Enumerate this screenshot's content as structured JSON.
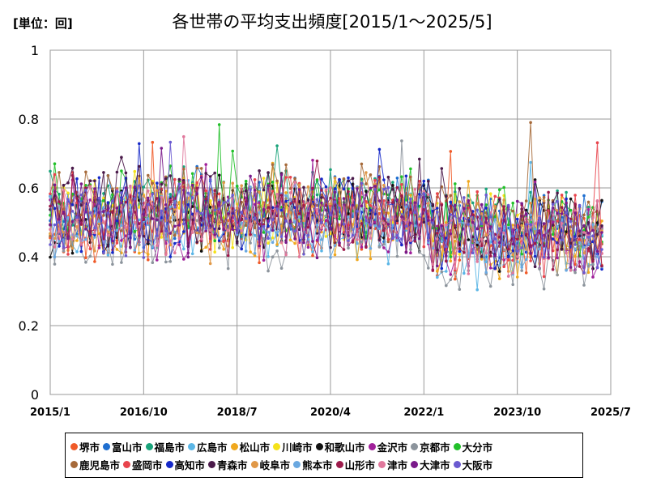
{
  "chart_data": {
    "type": "line",
    "title": "各世帯の平均支出頻度[2015/1～2025/5]",
    "unit_label": "[単位：回]",
    "xlabel": "",
    "ylabel": "",
    "ylim": [
      0,
      1
    ],
    "yticks": [
      "0",
      "0.2",
      "0.4",
      "0.6",
      "0.8",
      "1"
    ],
    "yticks_values": [
      0,
      0.2,
      0.4,
      0.6,
      0.8,
      1
    ],
    "xticks": [
      "2015/1",
      "2016/10",
      "2018/7",
      "2020/4",
      "2022/1",
      "2023/10",
      "2025/7"
    ],
    "xticks_index": [
      0,
      21,
      42,
      63,
      84,
      105,
      126
    ],
    "n_points": 125,
    "grid": true,
    "legend_position": "bottom",
    "series": [
      {
        "name": "堺市",
        "color": "#f05a28",
        "base": 0.49,
        "amp": 0.08,
        "seed": 1
      },
      {
        "name": "富山市",
        "color": "#1f6fd0",
        "base": 0.54,
        "amp": 0.1,
        "seed": 2
      },
      {
        "name": "福島市",
        "color": "#19a37a",
        "base": 0.55,
        "amp": 0.09,
        "seed": 3
      },
      {
        "name": "広島市",
        "color": "#5bb6e6",
        "base": 0.48,
        "amp": 0.08,
        "seed": 4
      },
      {
        "name": "松山市",
        "color": "#f0a81e",
        "base": 0.5,
        "amp": 0.09,
        "seed": 5
      },
      {
        "name": "川崎市",
        "color": "#f5e21a",
        "base": 0.53,
        "amp": 0.1,
        "seed": 6
      },
      {
        "name": "和歌山市",
        "color": "#111111",
        "base": 0.52,
        "amp": 0.1,
        "seed": 7
      },
      {
        "name": "金沢市",
        "color": "#a0209a",
        "base": 0.49,
        "amp": 0.09,
        "seed": 8
      },
      {
        "name": "京都市",
        "color": "#8c949c",
        "base": 0.47,
        "amp": 0.1,
        "seed": 9
      },
      {
        "name": "大分市",
        "color": "#22c02a",
        "base": 0.55,
        "amp": 0.09,
        "seed": 10
      },
      {
        "name": "鹿児島市",
        "color": "#a66a3a",
        "base": 0.55,
        "amp": 0.1,
        "seed": 11
      },
      {
        "name": "盛岡市",
        "color": "#e8444c",
        "base": 0.53,
        "amp": 0.1,
        "seed": 12
      },
      {
        "name": "高知市",
        "color": "#1528c8",
        "base": 0.52,
        "amp": 0.1,
        "seed": 13
      },
      {
        "name": "青森市",
        "color": "#4a1a4a",
        "base": 0.54,
        "amp": 0.11,
        "seed": 14
      },
      {
        "name": "岐阜市",
        "color": "#e09848",
        "base": 0.52,
        "amp": 0.09,
        "seed": 15
      },
      {
        "name": "熊本市",
        "color": "#6aa8e0",
        "base": 0.5,
        "amp": 0.09,
        "seed": 16
      },
      {
        "name": "山形市",
        "color": "#9c1a4a",
        "base": 0.52,
        "amp": 0.1,
        "seed": 17
      },
      {
        "name": "津市",
        "color": "#e0789c",
        "base": 0.51,
        "amp": 0.1,
        "seed": 18
      },
      {
        "name": "大津市",
        "color": "#7a1a8a",
        "base": 0.52,
        "amp": 0.1,
        "seed": 19
      },
      {
        "name": "大阪市",
        "color": "#6a5ad0",
        "base": 0.52,
        "amp": 0.1,
        "seed": 20
      }
    ]
  }
}
